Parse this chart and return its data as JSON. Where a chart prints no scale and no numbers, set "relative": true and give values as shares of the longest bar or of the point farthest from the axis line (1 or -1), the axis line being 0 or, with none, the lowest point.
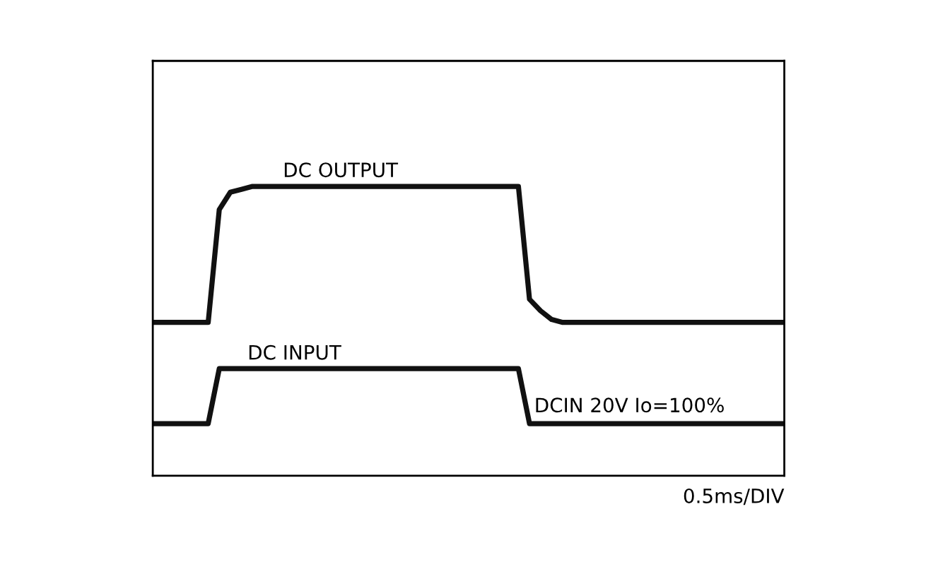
{
  "chart_data": {
    "type": "line",
    "relative": true,
    "categories": [
      null,
      null,
      null,
      null,
      null,
      null,
      null,
      null,
      null,
      null,
      null,
      null,
      null,
      null,
      null,
      null,
      null,
      null,
      null,
      null,
      null,
      null,
      null,
      null,
      null,
      null,
      null,
      null,
      null,
      null,
      null,
      null,
      null,
      null,
      null,
      null,
      null,
      null,
      null,
      null,
      null,
      null,
      null,
      null,
      null,
      null,
      null,
      null,
      null,
      null,
      null,
      null,
      null,
      null,
      null,
      null,
      null,
      null
    ],
    "series": [
      {
        "color": "#111111",
        "values": [
          0.53,
          0.53,
          0.53,
          0.53,
          0.53,
          0.53,
          0.92,
          0.98,
          0.99,
          1,
          1,
          1,
          1,
          1,
          1,
          1,
          1,
          1,
          1,
          1,
          1,
          1,
          1,
          1,
          1,
          1,
          1,
          1,
          1,
          1,
          1,
          1,
          1,
          1,
          0.61,
          0.57,
          0.54,
          0.53,
          0.53,
          0.53,
          0.53,
          0.53,
          0.53,
          0.53,
          0.53,
          0.53,
          0.53,
          0.53,
          0.53,
          0.53,
          0.53,
          0.53,
          0.53,
          0.53,
          0.53,
          0.53,
          0.53,
          0.53
        ]
      },
      {
        "color": "#111111",
        "values": [
          0.18,
          0.18,
          0.18,
          0.18,
          0.18,
          0.18,
          0.37,
          0.37,
          0.37,
          0.37,
          0.37,
          0.37,
          0.37,
          0.37,
          0.37,
          0.37,
          0.37,
          0.37,
          0.37,
          0.37,
          0.37,
          0.37,
          0.37,
          0.37,
          0.37,
          0.37,
          0.37,
          0.37,
          0.37,
          0.37,
          0.37,
          0.37,
          0.37,
          0.37,
          0.18,
          0.18,
          0.18,
          0.18,
          0.18,
          0.18,
          0.18,
          0.18,
          0.18,
          0.18,
          0.18,
          0.18,
          0.18,
          0.18,
          0.18,
          0.18,
          0.18,
          0.18,
          0.18,
          0.18,
          0.18,
          0.18,
          0.18,
          0.18
        ]
      }
    ],
    "annotations": [
      "DC OUTPUT",
      "DC INPUT",
      "DCIN 20V Io=100%",
      "0.5ms/DIV"
    ],
    "marker": "none",
    "line_style": "solid"
  }
}
